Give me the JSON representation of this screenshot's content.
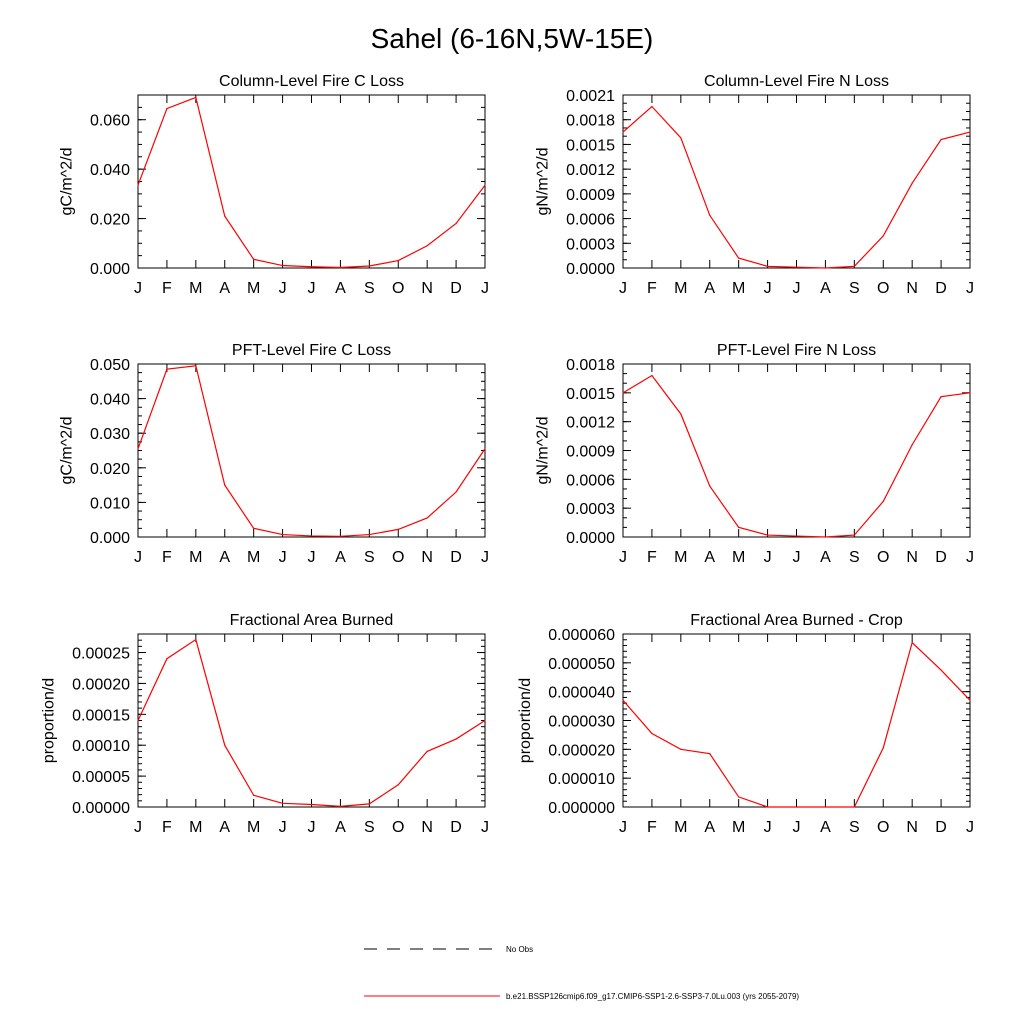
{
  "title": "Sahel (6-16N,5W-15E)",
  "months": [
    "J",
    "F",
    "M",
    "A",
    "M",
    "J",
    "J",
    "A",
    "S",
    "O",
    "N",
    "D",
    "J"
  ],
  "line_color": "#ff0000",
  "legend": {
    "items": [
      {
        "label": "No Obs",
        "style": "dashed",
        "color": "#000000"
      },
      {
        "label": "b.e21.BSSP126cmip6.f09_g17.CMIP6-SSP1-2.6-SSP3-7.0Lu.003 (yrs 2055-2079)",
        "style": "solid",
        "color": "#ff0000"
      }
    ]
  },
  "chart_data": [
    {
      "type": "line",
      "title": "Column-Level Fire C Loss",
      "ylabel": "gC/m^2/d",
      "ylim": [
        0,
        0.07
      ],
      "yticks": [
        0,
        0.02,
        0.04,
        0.06
      ],
      "ytick_labels": [
        "0.000",
        "0.020",
        "0.040",
        "0.060"
      ],
      "y_minor_step": 0.005,
      "values": [
        0.0335,
        0.0645,
        0.069,
        0.021,
        0.0035,
        0.001,
        0.0005,
        0.0002,
        0.0008,
        0.003,
        0.009,
        0.018,
        0.0335
      ]
    },
    {
      "type": "line",
      "title": "Column-Level Fire N Loss",
      "ylabel": "gN/m^2/d",
      "ylim": [
        0,
        0.0021
      ],
      "yticks": [
        0,
        0.0003,
        0.0006,
        0.0009,
        0.0012,
        0.0015,
        0.0018,
        0.0021
      ],
      "ytick_labels": [
        "0.0000",
        "0.0003",
        "0.0006",
        "0.0009",
        "0.0012",
        "0.0015",
        "0.0018",
        "0.0021"
      ],
      "y_minor_step": 0.0001,
      "values": [
        0.00165,
        0.00196,
        0.00158,
        0.00064,
        0.00012,
        2e-05,
        1e-05,
        0.0,
        2e-05,
        0.00039,
        0.00103,
        0.00156,
        0.00165
      ]
    },
    {
      "type": "line",
      "title": "PFT-Level Fire C Loss",
      "ylabel": "gC/m^2/d",
      "ylim": [
        0,
        0.05
      ],
      "yticks": [
        0,
        0.01,
        0.02,
        0.03,
        0.04,
        0.05
      ],
      "ytick_labels": [
        "0.000",
        "0.010",
        "0.020",
        "0.030",
        "0.040",
        "0.050"
      ],
      "y_minor_step": 0.0025,
      "values": [
        0.0255,
        0.0485,
        0.0495,
        0.015,
        0.0025,
        0.0007,
        0.0003,
        0.0002,
        0.0007,
        0.0022,
        0.0055,
        0.013,
        0.0255
      ]
    },
    {
      "type": "line",
      "title": "PFT-Level Fire N Loss",
      "ylabel": "gN/m^2/d",
      "ylim": [
        0,
        0.0018
      ],
      "yticks": [
        0,
        0.0003,
        0.0006,
        0.0009,
        0.0012,
        0.0015,
        0.0018
      ],
      "ytick_labels": [
        "0.0000",
        "0.0003",
        "0.0006",
        "0.0009",
        "0.0012",
        "0.0015",
        "0.0018"
      ],
      "y_minor_step": 0.0001,
      "values": [
        0.0015,
        0.00168,
        0.00128,
        0.00053,
        0.0001,
        2e-05,
        1e-05,
        0.0,
        2e-05,
        0.00037,
        0.00096,
        0.00146,
        0.0015
      ]
    },
    {
      "type": "line",
      "title": "Fractional Area Burned",
      "ylabel": "proportion/d",
      "ylim": [
        0,
        0.00028
      ],
      "yticks": [
        0,
        5e-05,
        0.0001,
        0.00015,
        0.0002,
        0.00025
      ],
      "ytick_labels": [
        "0.00000",
        "0.00005",
        "0.00010",
        "0.00015",
        "0.00020",
        "0.00025"
      ],
      "y_minor_step": 1e-05,
      "values": [
        0.00014,
        0.00024,
        0.000271,
        0.0001,
        1.9e-05,
        6e-06,
        4e-06,
        1e-06,
        5e-06,
        3.6e-05,
        9e-05,
        0.00011,
        0.00014
      ]
    },
    {
      "type": "line",
      "title": "Fractional Area Burned - Crop",
      "ylabel": "proportion/d",
      "ylim": [
        0,
        6e-05
      ],
      "yticks": [
        0,
        1e-05,
        2e-05,
        3e-05,
        4e-05,
        5e-05,
        6e-05
      ],
      "ytick_labels": [
        "0.000000",
        "0.000010",
        "0.000020",
        "0.000030",
        "0.000040",
        "0.000050",
        "0.000060"
      ],
      "y_minor_step": 2e-06,
      "values": [
        3.7e-05,
        2.55e-05,
        2e-05,
        1.85e-05,
        3.5e-06,
        0.0,
        0.0,
        0.0,
        0.0,
        2.05e-05,
        5.7e-05,
        4.75e-05,
        3.7e-05
      ]
    }
  ]
}
